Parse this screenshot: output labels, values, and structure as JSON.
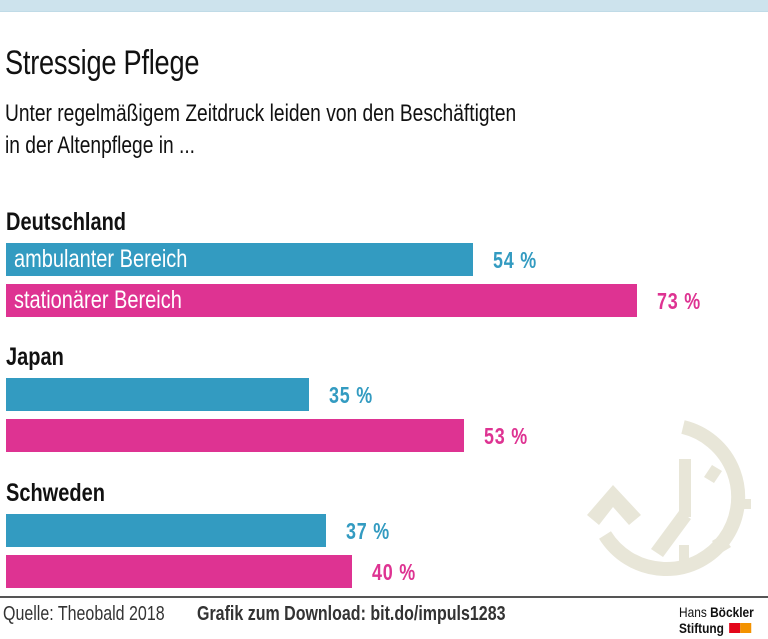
{
  "header": {
    "title": "Stressige Pflege",
    "subtitle_line1": "Unter regelmäßigem Zeitdruck leiden von den Beschäftigten",
    "subtitle_line2": "in der Altenpflege in ..."
  },
  "colors": {
    "ambulant": "#339bc1",
    "stationaer": "#de3392",
    "top_band": "#cde3ed",
    "clock_icon": "#e8e6d8"
  },
  "chart_data": {
    "type": "bar",
    "orientation": "horizontal",
    "title": "Stressige Pflege",
    "subtitle": "Unter regelmäßigem Zeitdruck leiden von den Beschäftigten in der Altenpflege in ...",
    "categories": [
      "Deutschland",
      "Japan",
      "Schweden"
    ],
    "series": [
      {
        "name": "ambulanter Bereich",
        "values": [
          54,
          35,
          37
        ]
      },
      {
        "name": "stationärer Bereich",
        "values": [
          73,
          53,
          40
        ]
      }
    ],
    "unit": "%",
    "value_labels": {
      "ambulanter Bereich": [
        "54 %",
        "35 %",
        "37 %"
      ],
      "stationärer Bereich": [
        "73 %",
        "53 %",
        "40 %"
      ]
    },
    "xlim": [
      0,
      100
    ],
    "grid": false,
    "legend": "inline labels inside first group's bars"
  },
  "footer": {
    "source": "Quelle: Theobald 2018",
    "download": "Grafik zum Download: bit.do/impuls1283",
    "logo_line1_regular": "Hans ",
    "logo_line1_bold": "Böckler",
    "logo_line2": "Stiftung"
  },
  "icons": {
    "clock": "clock-with-counterclockwise-arrow-icon"
  }
}
